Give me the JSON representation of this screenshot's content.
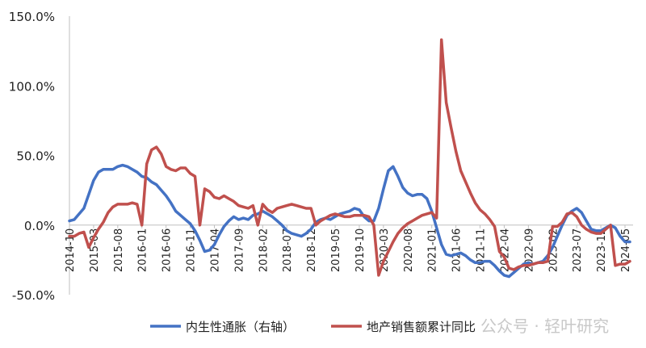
{
  "chart_data": {
    "type": "line",
    "title": "",
    "xlabel": "",
    "ylabel": "",
    "ylim": [
      -50,
      150
    ],
    "yticks": [
      "150.0%",
      "100.0%",
      "50.0%",
      "0.0%",
      "-50.0%"
    ],
    "ytick_values": [
      150,
      100,
      50,
      0,
      -50
    ],
    "xtick_labels": [
      "2014-10",
      "2015-03",
      "2015-08",
      "2016-01",
      "2016-06",
      "2016-11",
      "2017-04",
      "2017-09",
      "2018-02",
      "2018-07",
      "2018-12",
      "2019-05",
      "2019-10",
      "2020-03",
      "2020-08",
      "2021-01",
      "2021-06",
      "2021-11",
      "2022-04",
      "2022-09",
      "2023-02",
      "2023-07",
      "2023-12",
      "2024-05"
    ],
    "x_start": "2014-10",
    "x_end": "2024-05",
    "legend_position": "bottom",
    "grid": false,
    "series": [
      {
        "name": "内生性通胀（右轴）",
        "color": "#4472c4",
        "points": [
          [
            "2014-10",
            3
          ],
          [
            "2014-11",
            4
          ],
          [
            "2014-12",
            8
          ],
          [
            "2015-01",
            12
          ],
          [
            "2015-02",
            22
          ],
          [
            "2015-03",
            32
          ],
          [
            "2015-04",
            38
          ],
          [
            "2015-05",
            40
          ],
          [
            "2015-06",
            40
          ],
          [
            "2015-07",
            40
          ],
          [
            "2015-08",
            42
          ],
          [
            "2015-09",
            43
          ],
          [
            "2015-10",
            42
          ],
          [
            "2015-11",
            40
          ],
          [
            "2015-12",
            38
          ],
          [
            "2016-01",
            35
          ],
          [
            "2016-02",
            34
          ],
          [
            "2016-03",
            31
          ],
          [
            "2016-04",
            29
          ],
          [
            "2016-05",
            25
          ],
          [
            "2016-06",
            21
          ],
          [
            "2016-07",
            16
          ],
          [
            "2016-08",
            10
          ],
          [
            "2016-09",
            7
          ],
          [
            "2016-10",
            4
          ],
          [
            "2016-11",
            1
          ],
          [
            "2016-12",
            -4
          ],
          [
            "2017-01",
            -11
          ],
          [
            "2017-02",
            -19
          ],
          [
            "2017-03",
            -18
          ],
          [
            "2017-04",
            -14
          ],
          [
            "2017-05",
            -7
          ],
          [
            "2017-06",
            -1
          ],
          [
            "2017-07",
            3
          ],
          [
            "2017-08",
            6
          ],
          [
            "2017-09",
            4
          ],
          [
            "2017-10",
            5
          ],
          [
            "2017-11",
            4
          ],
          [
            "2017-12",
            7
          ],
          [
            "2018-01",
            8
          ],
          [
            "2018-02",
            10
          ],
          [
            "2018-03",
            8
          ],
          [
            "2018-04",
            6
          ],
          [
            "2018-05",
            3
          ],
          [
            "2018-06",
            0
          ],
          [
            "2018-07",
            -4
          ],
          [
            "2018-08",
            -6
          ],
          [
            "2018-09",
            -7
          ],
          [
            "2018-10",
            -8
          ],
          [
            "2018-11",
            -6
          ],
          [
            "2018-12",
            -3
          ],
          [
            "2019-01",
            2
          ],
          [
            "2019-02",
            4
          ],
          [
            "2019-03",
            5
          ],
          [
            "2019-04",
            4
          ],
          [
            "2019-05",
            6
          ],
          [
            "2019-06",
            8
          ],
          [
            "2019-07",
            9
          ],
          [
            "2019-08",
            10
          ],
          [
            "2019-09",
            12
          ],
          [
            "2019-10",
            11
          ],
          [
            "2019-11",
            6
          ],
          [
            "2019-12",
            3
          ],
          [
            "2020-01",
            3
          ],
          [
            "2020-02",
            12
          ],
          [
            "2020-03",
            26
          ],
          [
            "2020-04",
            39
          ],
          [
            "2020-05",
            42
          ],
          [
            "2020-06",
            35
          ],
          [
            "2020-07",
            27
          ],
          [
            "2020-08",
            23
          ],
          [
            "2020-09",
            21
          ],
          [
            "2020-10",
            22
          ],
          [
            "2020-11",
            22
          ],
          [
            "2020-12",
            19
          ],
          [
            "2021-01",
            10
          ],
          [
            "2021-02",
            -2
          ],
          [
            "2021-03",
            -14
          ],
          [
            "2021-04",
            -21
          ],
          [
            "2021-05",
            -22
          ],
          [
            "2021-06",
            -21
          ],
          [
            "2021-07",
            -20
          ],
          [
            "2021-08",
            -22
          ],
          [
            "2021-09",
            -25
          ],
          [
            "2021-10",
            -27
          ],
          [
            "2021-11",
            -27
          ],
          [
            "2021-12",
            -26
          ],
          [
            "2022-01",
            -26
          ],
          [
            "2022-02",
            -29
          ],
          [
            "2022-03",
            -33
          ],
          [
            "2022-04",
            -36
          ],
          [
            "2022-05",
            -37
          ],
          [
            "2022-06",
            -34
          ],
          [
            "2022-07",
            -31
          ],
          [
            "2022-08",
            -28
          ],
          [
            "2022-09",
            -27
          ],
          [
            "2022-10",
            -28
          ],
          [
            "2022-11",
            -27
          ],
          [
            "2022-12",
            -26
          ],
          [
            "2023-01",
            -22
          ],
          [
            "2023-02",
            -16
          ],
          [
            "2023-03",
            -8
          ],
          [
            "2023-04",
            0
          ],
          [
            "2023-05",
            7
          ],
          [
            "2023-06",
            10
          ],
          [
            "2023-07",
            12
          ],
          [
            "2023-08",
            9
          ],
          [
            "2023-09",
            3
          ],
          [
            "2023-10",
            -3
          ],
          [
            "2023-11",
            -4
          ],
          [
            "2023-12",
            -4
          ],
          [
            "2024-01",
            -2
          ],
          [
            "2024-02",
            0
          ],
          [
            "2024-03",
            -2
          ],
          [
            "2024-04",
            -8
          ],
          [
            "2024-05",
            -12
          ],
          [
            "2024-06",
            -12
          ]
        ]
      },
      {
        "name": "地产销售额累计同比",
        "color": "#c0504d",
        "points": [
          [
            "2014-10",
            -8
          ],
          [
            "2014-11",
            -8
          ],
          [
            "2014-12",
            -6
          ],
          [
            "2015-01",
            -5
          ],
          [
            "2015-02",
            -16
          ],
          [
            "2015-03",
            -9
          ],
          [
            "2015-04",
            -3
          ],
          [
            "2015-05",
            2
          ],
          [
            "2015-06",
            9
          ],
          [
            "2015-07",
            13
          ],
          [
            "2015-08",
            15
          ],
          [
            "2015-09",
            15
          ],
          [
            "2015-10",
            15
          ],
          [
            "2015-11",
            16
          ],
          [
            "2015-12",
            15
          ],
          [
            "2016-01",
            0
          ],
          [
            "2016-02",
            44
          ],
          [
            "2016-03",
            54
          ],
          [
            "2016-04",
            56
          ],
          [
            "2016-05",
            51
          ],
          [
            "2016-06",
            42
          ],
          [
            "2016-07",
            40
          ],
          [
            "2016-08",
            39
          ],
          [
            "2016-09",
            41
          ],
          [
            "2016-10",
            41
          ],
          [
            "2016-11",
            37
          ],
          [
            "2016-12",
            35
          ],
          [
            "2017-01",
            0
          ],
          [
            "2017-02",
            26
          ],
          [
            "2017-03",
            24
          ],
          [
            "2017-04",
            20
          ],
          [
            "2017-05",
            19
          ],
          [
            "2017-06",
            21
          ],
          [
            "2017-07",
            19
          ],
          [
            "2017-08",
            17
          ],
          [
            "2017-09",
            14
          ],
          [
            "2017-10",
            13
          ],
          [
            "2017-11",
            12
          ],
          [
            "2017-12",
            14
          ],
          [
            "2018-01",
            0
          ],
          [
            "2018-02",
            15
          ],
          [
            "2018-03",
            11
          ],
          [
            "2018-04",
            9
          ],
          [
            "2018-05",
            12
          ],
          [
            "2018-06",
            13
          ],
          [
            "2018-07",
            14
          ],
          [
            "2018-08",
            15
          ],
          [
            "2018-09",
            14
          ],
          [
            "2018-10",
            13
          ],
          [
            "2018-11",
            12
          ],
          [
            "2018-12",
            12
          ],
          [
            "2019-01",
            0
          ],
          [
            "2019-02",
            3
          ],
          [
            "2019-03",
            5
          ],
          [
            "2019-04",
            7
          ],
          [
            "2019-05",
            8
          ],
          [
            "2019-06",
            7
          ],
          [
            "2019-07",
            6
          ],
          [
            "2019-08",
            6
          ],
          [
            "2019-09",
            7
          ],
          [
            "2019-10",
            7
          ],
          [
            "2019-11",
            7
          ],
          [
            "2019-12",
            6
          ],
          [
            "2020-01",
            0
          ],
          [
            "2020-02",
            -36
          ],
          [
            "2020-03",
            -26
          ],
          [
            "2020-04",
            -19
          ],
          [
            "2020-05",
            -12
          ],
          [
            "2020-06",
            -6
          ],
          [
            "2020-07",
            -2
          ],
          [
            "2020-08",
            1
          ],
          [
            "2020-09",
            3
          ],
          [
            "2020-10",
            5
          ],
          [
            "2020-11",
            7
          ],
          [
            "2020-12",
            8
          ],
          [
            "2021-01",
            9
          ],
          [
            "2021-02",
            5
          ],
          [
            "2021-03",
            133
          ],
          [
            "2021-04",
            88
          ],
          [
            "2021-05",
            70
          ],
          [
            "2021-06",
            53
          ],
          [
            "2021-07",
            39
          ],
          [
            "2021-08",
            31
          ],
          [
            "2021-09",
            23
          ],
          [
            "2021-10",
            16
          ],
          [
            "2021-11",
            11
          ],
          [
            "2021-12",
            8
          ],
          [
            "2022-01",
            4
          ],
          [
            "2022-02",
            -1
          ],
          [
            "2022-03",
            -19
          ],
          [
            "2022-04",
            -23
          ],
          [
            "2022-05",
            -31
          ],
          [
            "2022-06",
            -32
          ],
          [
            "2022-07",
            -30
          ],
          [
            "2022-08",
            -29
          ],
          [
            "2022-09",
            -29
          ],
          [
            "2022-10",
            -28
          ],
          [
            "2022-11",
            -27
          ],
          [
            "2022-12",
            -27
          ],
          [
            "2023-01",
            -26
          ],
          [
            "2023-02",
            -1
          ],
          [
            "2023-03",
            -1
          ],
          [
            "2023-04",
            2
          ],
          [
            "2023-05",
            8
          ],
          [
            "2023-06",
            9
          ],
          [
            "2023-07",
            6
          ],
          [
            "2023-08",
            0
          ],
          [
            "2023-09",
            -3
          ],
          [
            "2023-10",
            -5
          ],
          [
            "2023-11",
            -6
          ],
          [
            "2023-12",
            -6
          ],
          [
            "2024-01",
            -3
          ],
          [
            "2024-02",
            0
          ],
          [
            "2024-03",
            -29
          ],
          [
            "2024-04",
            -28
          ],
          [
            "2024-05",
            -28
          ],
          [
            "2024-06",
            -26
          ]
        ]
      }
    ]
  },
  "watermark": "公众号 · 轻叶研究"
}
